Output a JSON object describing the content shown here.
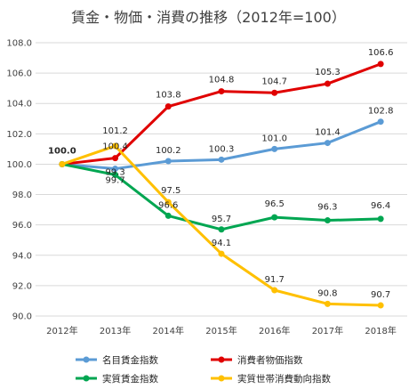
{
  "chart_data": {
    "type": "line",
    "title": "賃金・物価・消費の推移（2012年=100）",
    "categories": [
      "2012年",
      "2013年",
      "2014年",
      "2015年",
      "2016年",
      "2017年",
      "2018年"
    ],
    "ylim": [
      90.0,
      108.0
    ],
    "yticks": [
      "90.0",
      "92.0",
      "94.0",
      "96.0",
      "98.0",
      "100.0",
      "102.0",
      "104.0",
      "106.0",
      "108.0"
    ],
    "grid": true,
    "legend_position": "bottom",
    "series": [
      {
        "name": "名目賃金指数",
        "color": "#5b9bd5",
        "values": [
          100.0,
          99.7,
          100.2,
          100.3,
          101.0,
          101.4,
          102.8
        ],
        "labels": [
          "",
          "99.7",
          "100.2",
          "100.3",
          "101.0",
          "101.4",
          "102.8"
        ]
      },
      {
        "name": "消費者物価指数",
        "color": "#e00000",
        "values": [
          100.0,
          100.4,
          103.8,
          104.8,
          104.7,
          105.3,
          106.6
        ],
        "labels": [
          "",
          "100.4",
          "103.8",
          "104.8",
          "104.7",
          "105.3",
          "106.6"
        ]
      },
      {
        "name": "実質賃金指数",
        "color": "#00a651",
        "values": [
          100.0,
          99.3,
          96.6,
          95.7,
          96.5,
          96.3,
          96.4
        ],
        "labels": [
          "",
          "99.3",
          "96.6",
          "95.7",
          "96.5",
          "96.3",
          "96.4"
        ]
      },
      {
        "name": "実質世帯消費動向指数",
        "color": "#ffc000",
        "values": [
          100.0,
          101.2,
          97.5,
          94.1,
          91.7,
          90.8,
          90.7
        ],
        "labels": [
          "100.0",
          "101.2",
          "97.5",
          "94.1",
          "91.7",
          "90.8",
          "90.7"
        ]
      }
    ]
  }
}
